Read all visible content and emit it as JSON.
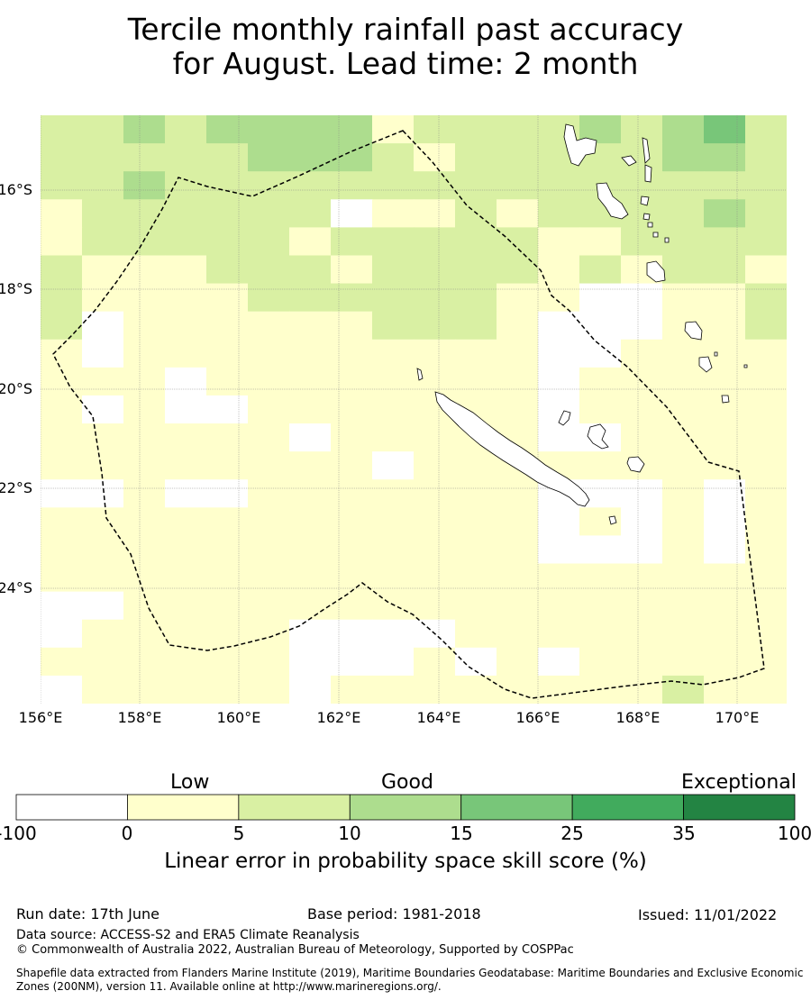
{
  "title": {
    "line1": "Tercile monthly rainfall past accuracy",
    "line2": "for August. Lead time: 2 month"
  },
  "map": {
    "lat_labels": [
      "16°S",
      "18°S",
      "20°S",
      "22°S",
      "24°S"
    ],
    "lon_labels": [
      "156°E",
      "158°E",
      "160°E",
      "162°E",
      "164°E",
      "166°E",
      "168°E",
      "170°E"
    ],
    "extent": {
      "lon": [
        156,
        171
      ],
      "lat": [
        -14.5,
        -26.5
      ]
    },
    "category_colors": [
      "#ffffff",
      "#ffffcc",
      "#d9f0a3",
      "#addd8e",
      "#78c679",
      "#41ab5d",
      "#238443"
    ],
    "legend_colors": [
      "#ffffff",
      "#ffffcc",
      "#d9f0a3",
      "#addd8e",
      "#78c679",
      "#41ab5d",
      "#238443"
    ]
  },
  "colorbar": {
    "categories": {
      "low": "Low",
      "good": "Good",
      "exceptional": "Exceptional"
    },
    "ticks": [
      "-100",
      "0",
      "5",
      "10",
      "15",
      "25",
      "35",
      "100"
    ],
    "label": "Linear error in probability space skill score (%)"
  },
  "footer": {
    "run_date": "Run date: 17th June",
    "base_period": "Base period: 1981-2018",
    "issued": "Issued: 11/01/2022",
    "data_source": "Data source: ACCESS-S2 and ERA5 Climate Reanalysis",
    "copyright": "© Commonwealth of Australia 2022, Australian Bureau of Meteorology, Supported by COSPPac",
    "shapefile": "Shapefile data extracted from Flanders Marine Institute (2019), Maritime Boundaries Geodatabase: Maritime Boundaries and Exclusive Economic Zones (200NM), version 11. Available online at http://www.marineregions.org/."
  }
}
